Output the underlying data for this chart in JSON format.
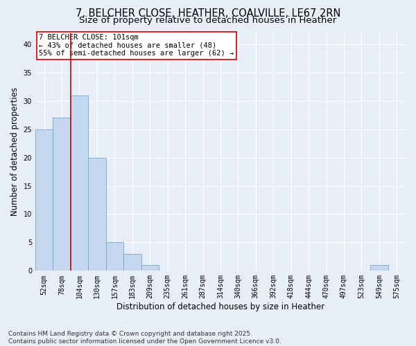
{
  "title_line1": "7, BELCHER CLOSE, HEATHER, COALVILLE, LE67 2RN",
  "title_line2": "Size of property relative to detached houses in Heather",
  "xlabel": "Distribution of detached houses by size in Heather",
  "ylabel": "Number of detached properties",
  "categories": [
    "52sqm",
    "78sqm",
    "104sqm",
    "130sqm",
    "157sqm",
    "183sqm",
    "209sqm",
    "235sqm",
    "261sqm",
    "287sqm",
    "314sqm",
    "340sqm",
    "366sqm",
    "392sqm",
    "418sqm",
    "444sqm",
    "470sqm",
    "497sqm",
    "523sqm",
    "549sqm",
    "575sqm"
  ],
  "values": [
    25,
    27,
    31,
    20,
    5,
    3,
    1,
    0,
    0,
    0,
    0,
    0,
    0,
    0,
    0,
    0,
    0,
    0,
    0,
    1,
    0
  ],
  "bar_color": "#c5d8f0",
  "bar_edge_color": "#6fa8d0",
  "vline_x": 1.5,
  "vline_color": "#cc0000",
  "annotation_text": "7 BELCHER CLOSE: 101sqm\n← 43% of detached houses are smaller (48)\n55% of semi-detached houses are larger (62) →",
  "annotation_box_facecolor": "white",
  "annotation_box_edgecolor": "#cc0000",
  "ylim": [
    0,
    42
  ],
  "yticks": [
    0,
    5,
    10,
    15,
    20,
    25,
    30,
    35,
    40
  ],
  "footer_line1": "Contains HM Land Registry data © Crown copyright and database right 2025.",
  "footer_line2": "Contains public sector information licensed under the Open Government Licence v3.0.",
  "background_color": "#e8eef8",
  "grid_color": "#ffffff",
  "title_fontsize": 10.5,
  "subtitle_fontsize": 9.5,
  "tick_fontsize": 7,
  "label_fontsize": 8.5,
  "footer_fontsize": 6.5,
  "annotation_fontsize": 7.5
}
